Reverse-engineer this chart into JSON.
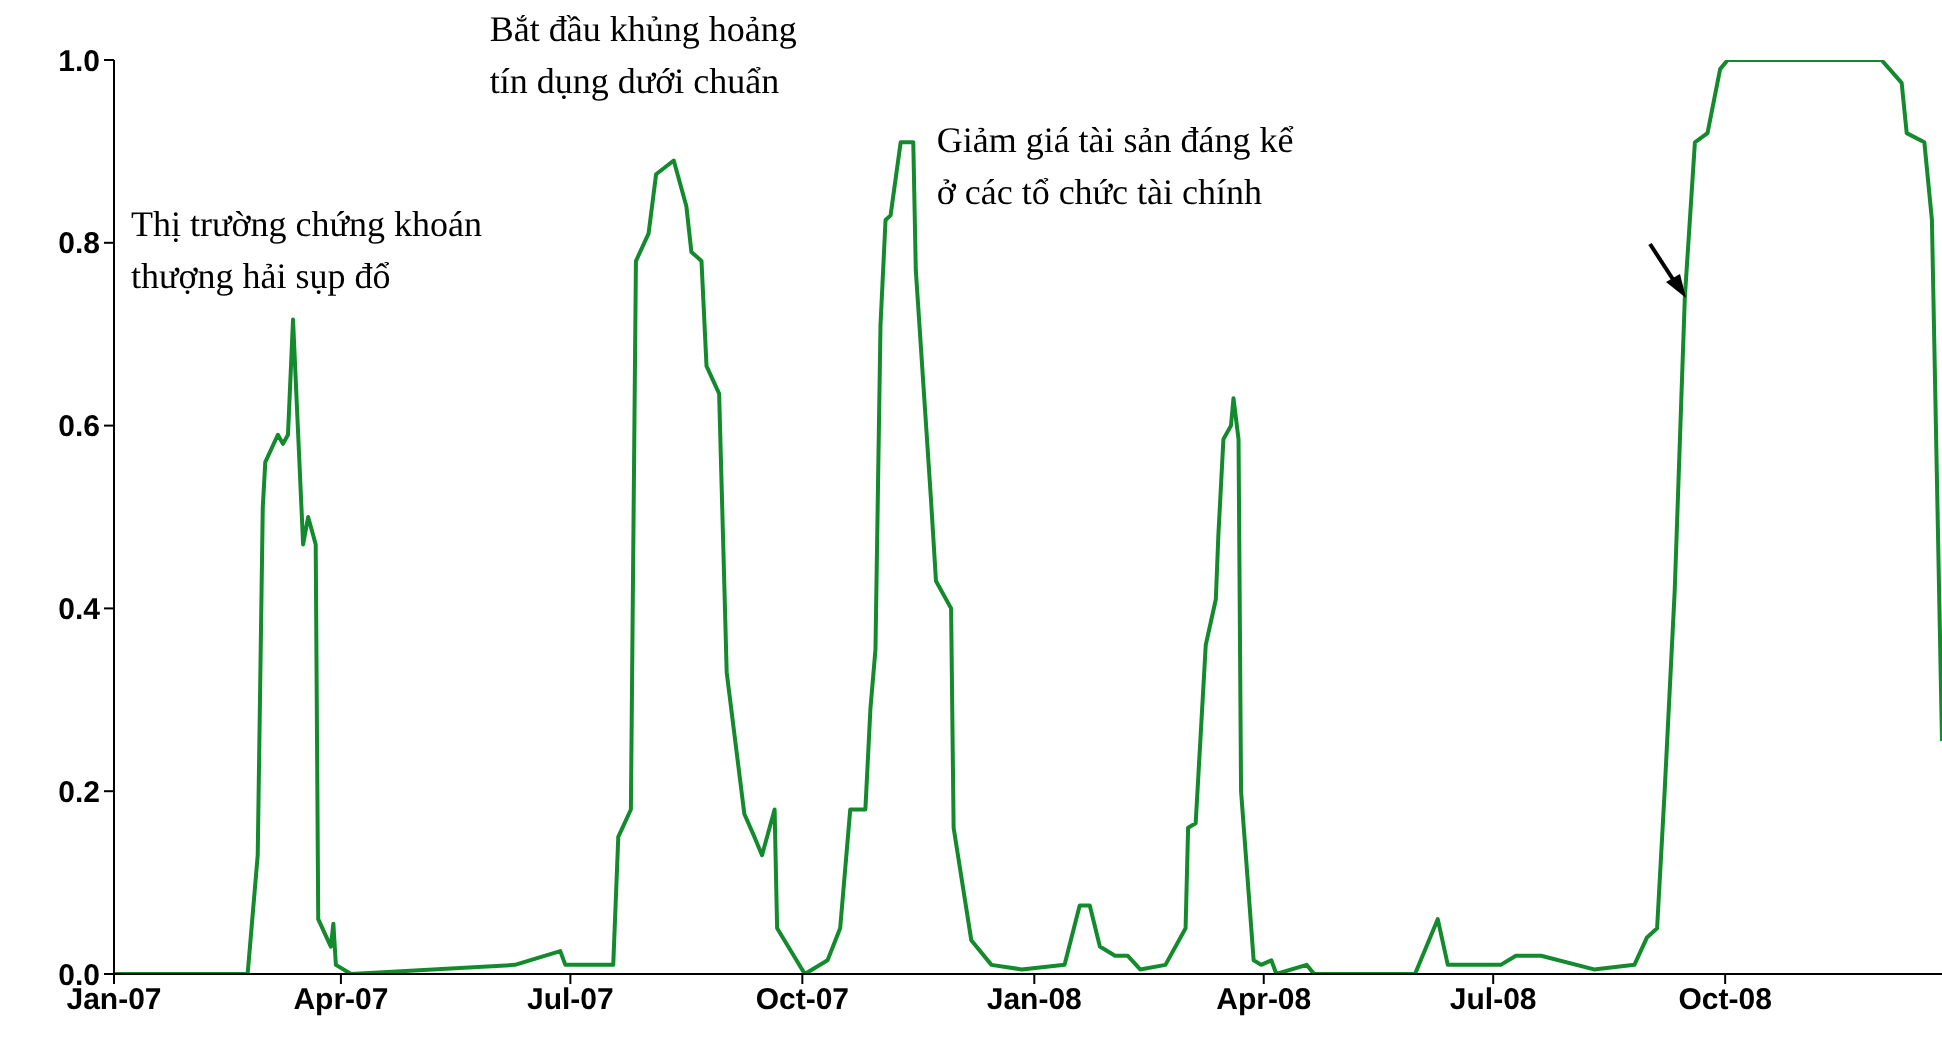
{
  "chart_data": {
    "type": "line",
    "x": [
      "2007-01-01",
      "2007-02-23",
      "2007-02-27",
      "2007-03-01",
      "2007-03-02",
      "2007-03-07",
      "2007-03-09",
      "2007-03-11",
      "2007-03-13",
      "2007-03-17",
      "2007-03-19",
      "2007-03-22",
      "2007-03-23",
      "2007-03-28",
      "2007-03-29",
      "2007-03-30",
      "2007-04-05",
      "2007-06-09",
      "2007-06-27",
      "2007-06-29",
      "2007-07-18",
      "2007-07-20",
      "2007-07-25",
      "2007-07-27",
      "2007-08-01",
      "2007-08-04",
      "2007-08-11",
      "2007-08-16",
      "2007-08-18",
      "2007-08-22",
      "2007-08-24",
      "2007-08-29",
      "2007-09-01",
      "2007-09-08",
      "2007-09-12",
      "2007-09-15",
      "2007-09-20",
      "2007-09-21",
      "2007-10-02",
      "2007-10-11",
      "2007-10-16",
      "2007-10-20",
      "2007-10-26",
      "2007-10-28",
      "2007-10-30",
      "2007-11-01",
      "2007-11-03",
      "2007-11-05",
      "2007-11-09",
      "2007-11-14",
      "2007-11-15",
      "2007-11-21",
      "2007-11-23",
      "2007-11-29",
      "2007-11-30",
      "2007-12-07",
      "2007-12-15",
      "2007-12-27",
      "2008-01-13",
      "2008-01-19",
      "2008-01-23",
      "2008-01-27",
      "2008-02-02",
      "2008-02-07",
      "2008-02-12",
      "2008-02-22",
      "2008-03-01",
      "2008-03-02",
      "2008-03-05",
      "2008-03-09",
      "2008-03-13",
      "2008-03-14",
      "2008-03-16",
      "2008-03-19",
      "2008-03-20",
      "2008-03-22",
      "2008-03-23",
      "2008-03-28",
      "2008-03-31",
      "2008-04-04",
      "2008-04-06",
      "2008-04-18",
      "2008-04-21",
      "2008-05-31",
      "2008-06-09",
      "2008-06-13",
      "2008-07-04",
      "2008-07-10",
      "2008-07-20",
      "2008-08-10",
      "2008-08-26",
      "2008-08-31",
      "2008-09-04",
      "2008-09-07",
      "2008-09-11",
      "2008-09-15",
      "2008-09-19",
      "2008-09-24",
      "2008-09-29",
      "2008-10-02",
      "2008-12-02",
      "2008-12-10",
      "2008-12-12",
      "2008-12-19",
      "2008-12-22",
      "2008-12-26"
    ],
    "series": [
      {
        "color": "#138a2c",
        "values": [
          0,
          0,
          0.13,
          0.51,
          0.56,
          0.59,
          0.58,
          0.59,
          0.716,
          0.47,
          0.5,
          0.47,
          0.06,
          0.03,
          0.055,
          0.01,
          0,
          0.01,
          0.025,
          0.01,
          0.01,
          0.15,
          0.18,
          0.78,
          0.81,
          0.875,
          0.89,
          0.84,
          0.79,
          0.78,
          0.665,
          0.635,
          0.33,
          0.175,
          0.15,
          0.13,
          0.18,
          0.05,
          0,
          0.015,
          0.05,
          0.18,
          0.18,
          0.29,
          0.355,
          0.71,
          0.825,
          0.83,
          0.91,
          0.91,
          0.77,
          0.52,
          0.43,
          0.4,
          0.16,
          0.037,
          0.01,
          0.005,
          0.01,
          0.075,
          0.075,
          0.03,
          0.02,
          0.02,
          0.005,
          0.01,
          0.05,
          0.16,
          0.165,
          0.36,
          0.41,
          0.48,
          0.585,
          0.6,
          0.63,
          0.585,
          0.2,
          0.015,
          0.01,
          0.015,
          0,
          0.01,
          0,
          0,
          0.06,
          0.01,
          0.01,
          0.02,
          0.02,
          0.005,
          0.01,
          0.04,
          0.05,
          0.2,
          0.42,
          0.74,
          0.91,
          0.92,
          0.99,
          1,
          1,
          0.975,
          0.92,
          0.91,
          0.825,
          0.255
        ]
      }
    ],
    "xlim": [
      "2007-01-01",
      "2008-12-26"
    ],
    "xticks": [
      {
        "value": "2007-01-01",
        "label": "Jan-07"
      },
      {
        "value": "2007-04-01",
        "label": "Apr-07"
      },
      {
        "value": "2007-07-01",
        "label": "Jul-07"
      },
      {
        "value": "2007-10-01",
        "label": "Oct-07"
      },
      {
        "value": "2008-01-01",
        "label": "Jan-08"
      },
      {
        "value": "2008-04-01",
        "label": "Apr-08"
      },
      {
        "value": "2008-07-01",
        "label": "Jul-08"
      },
      {
        "value": "2008-10-01",
        "label": "Oct-08"
      }
    ],
    "ylim": [
      0,
      1
    ],
    "yticks": [
      {
        "value": 0,
        "label": "0.0"
      },
      0.2,
      0.4,
      0.6,
      0.8,
      {
        "value": 1,
        "label": "1.0"
      }
    ],
    "annotations": [
      {
        "text": "Thị trường chứng khoán thượng hải sụp đổ",
        "x": "2007-03-13",
        "y": 0.716
      },
      {
        "text": "Bắt đầu khủng hoảng tín dụng dưới chuẩn",
        "x": "2007-08-11",
        "y": 0.89
      },
      {
        "text": "Giảm giá tài sản đáng kể ở các tổ chức tài chính",
        "x": "2007-11-09",
        "y": 0.91
      }
    ],
    "marker": "none",
    "line_style": "solid"
  }
}
